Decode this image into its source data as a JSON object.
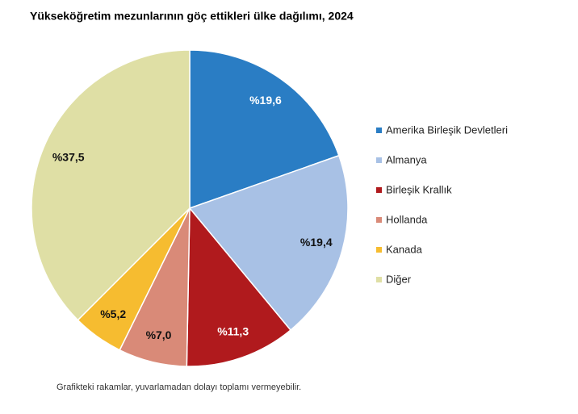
{
  "chart_data": {
    "type": "pie",
    "title": "Yükseköğretim mezunlarının göç ettikleri ülke dağılımı, 2024",
    "categories": [
      "Amerika Birleşik Devletleri",
      "Almanya",
      "Birleşik Krallık",
      "Hollanda",
      "Kanada",
      "Diğer"
    ],
    "values": [
      19.6,
      19.4,
      11.3,
      7.0,
      5.2,
      37.5
    ],
    "value_labels": [
      "%19,6",
      "%19,4",
      "%11,3",
      "%7,0",
      "%5,2",
      "%37,5"
    ],
    "colors": [
      "#2a7dc4",
      "#a8c1e5",
      "#b01a1d",
      "#d98a78",
      "#f6bc30",
      "#dfdfa5"
    ],
    "legend": "right",
    "note": "Grafikteki rakamlar, yuvarlamadan dolayı toplamı vermeyebilir."
  }
}
